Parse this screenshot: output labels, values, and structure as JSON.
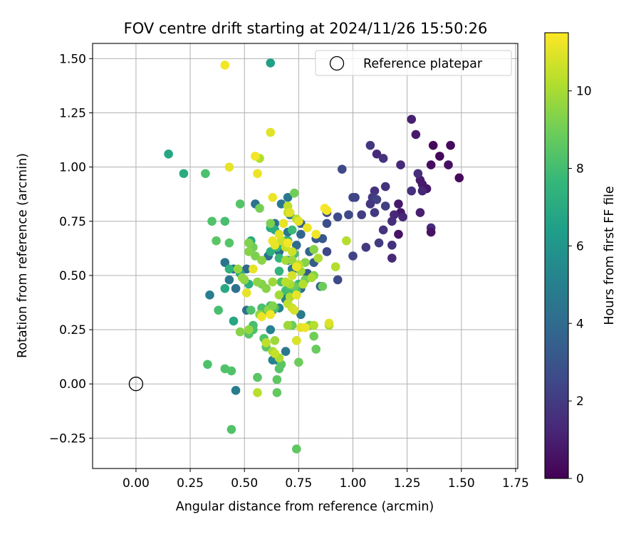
{
  "chart_data": {
    "type": "scatter",
    "title": "FOV centre drift starting at 2024/11/26 15:50:26",
    "xlabel": "Angular distance from reference (arcmin)",
    "ylabel": "Rotation from reference (arcmin)",
    "xlim": [
      -0.2,
      1.76
    ],
    "ylim": [
      -0.39,
      1.57
    ],
    "xticks": [
      0.0,
      0.25,
      0.5,
      0.75,
      1.0,
      1.25,
      1.5,
      1.75
    ],
    "xtick_labels": [
      "0.00",
      "0.25",
      "0.50",
      "0.75",
      "1.00",
      "1.25",
      "1.50",
      "1.75"
    ],
    "yticks": [
      -0.25,
      0.0,
      0.25,
      0.5,
      0.75,
      1.0,
      1.25,
      1.5
    ],
    "ytick_labels": [
      "−0.25",
      "0.00",
      "0.25",
      "0.50",
      "0.75",
      "1.00",
      "1.25",
      "1.50"
    ],
    "grid": true,
    "legend": {
      "placement": "top-right",
      "entries": [
        "Reference platepar"
      ]
    },
    "reference_point": {
      "x": 0.0,
      "y": 0.0
    },
    "colorbar": {
      "label": "Hours from first FF file",
      "colormap": "viridis",
      "range": [
        0,
        11.5
      ],
      "ticks": [
        0,
        2,
        4,
        6,
        8,
        10
      ],
      "tick_labels": [
        "0",
        "2",
        "4",
        "6",
        "8",
        "10"
      ]
    },
    "points": [
      [
        1.37,
        1.1,
        0.2
      ],
      [
        1.45,
        1.1,
        0.3
      ],
      [
        1.4,
        1.05,
        0.2
      ],
      [
        1.36,
        1.01,
        0.4
      ],
      [
        1.44,
        1.01,
        0.5
      ],
      [
        1.49,
        0.95,
        0.3
      ],
      [
        1.29,
        1.15,
        0.8
      ],
      [
        1.27,
        1.22,
        1.0
      ],
      [
        1.31,
        0.94,
        0.9
      ],
      [
        1.32,
        0.92,
        0.8
      ],
      [
        1.34,
        0.9,
        0.7
      ],
      [
        1.3,
        0.97,
        1.5
      ],
      [
        1.32,
        0.89,
        1.2
      ],
      [
        1.27,
        0.89,
        1.6
      ],
      [
        1.31,
        0.79,
        1.0
      ],
      [
        1.36,
        0.72,
        1.4
      ],
      [
        1.36,
        0.7,
        0.6
      ],
      [
        1.22,
        1.01,
        1.3
      ],
      [
        1.21,
        0.83,
        0.8
      ],
      [
        1.22,
        0.79,
        0.7
      ],
      [
        1.21,
        0.69,
        0.6
      ],
      [
        1.23,
        0.77,
        1.2
      ],
      [
        1.19,
        0.78,
        1.3
      ],
      [
        1.18,
        0.75,
        1.5
      ],
      [
        1.18,
        0.64,
        1.6
      ],
      [
        1.18,
        0.58,
        1.3
      ],
      [
        1.14,
        1.04,
        1.7
      ],
      [
        1.11,
        1.06,
        1.4
      ],
      [
        1.08,
        1.1,
        1.8
      ],
      [
        1.15,
        0.91,
        1.6
      ],
      [
        1.1,
        0.89,
        1.7
      ],
      [
        1.09,
        0.86,
        2.0
      ],
      [
        1.11,
        0.85,
        2.2
      ],
      [
        1.08,
        0.83,
        1.8
      ],
      [
        1.15,
        0.82,
        2.1
      ],
      [
        1.1,
        0.79,
        1.9
      ],
      [
        1.14,
        0.71,
        1.7
      ],
      [
        1.12,
        0.65,
        2.0
      ],
      [
        1.06,
        0.63,
        1.9
      ],
      [
        1.04,
        0.78,
        2.1
      ],
      [
        1.01,
        0.86,
        2.3
      ],
      [
        1.0,
        0.86,
        2.4
      ],
      [
        0.98,
        0.78,
        2.5
      ],
      [
        1.0,
        0.59,
        2.3
      ],
      [
        0.95,
        0.99,
        2.5
      ],
      [
        0.93,
        0.77,
        2.6
      ],
      [
        0.93,
        0.48,
        2.5
      ],
      [
        0.88,
        0.79,
        2.6
      ],
      [
        0.88,
        0.74,
        2.7
      ],
      [
        0.88,
        0.61,
        2.4
      ],
      [
        0.83,
        0.67,
        3.3
      ],
      [
        0.8,
        0.61,
        3.7
      ],
      [
        0.82,
        0.56,
        3.3
      ],
      [
        0.79,
        0.51,
        3.3
      ],
      [
        0.85,
        0.45,
        3.6
      ],
      [
        0.86,
        0.67,
        3.2
      ],
      [
        0.76,
        0.74,
        3.5
      ],
      [
        0.76,
        0.69,
        3.7
      ],
      [
        0.75,
        0.53,
        3.8
      ],
      [
        0.72,
        0.44,
        3.9
      ],
      [
        0.76,
        0.44,
        3.9
      ],
      [
        0.74,
        0.64,
        4.0
      ],
      [
        0.7,
        0.86,
        4.6
      ],
      [
        0.67,
        0.83,
        4.5
      ],
      [
        0.7,
        0.7,
        4.6
      ],
      [
        0.67,
        0.65,
        4.6
      ],
      [
        0.66,
        0.61,
        4.0
      ],
      [
        0.61,
        0.59,
        4.1
      ],
      [
        0.64,
        0.74,
        4.3
      ],
      [
        0.71,
        0.78,
        4.4
      ],
      [
        0.7,
        0.57,
        4.5
      ],
      [
        0.72,
        0.53,
        4.6
      ],
      [
        0.68,
        0.41,
        4.8
      ],
      [
        0.71,
        0.43,
        5.0
      ],
      [
        0.69,
        0.39,
        4.8
      ],
      [
        0.66,
        0.35,
        5.0
      ],
      [
        0.76,
        0.32,
        4.7
      ],
      [
        0.62,
        0.36,
        4.8
      ],
      [
        0.63,
        0.34,
        5.0
      ],
      [
        0.6,
        0.34,
        4.9
      ],
      [
        0.62,
        0.25,
        5.1
      ],
      [
        0.69,
        0.15,
        4.6
      ],
      [
        0.65,
        0.11,
        4.9
      ],
      [
        0.63,
        0.11,
        5.1
      ],
      [
        0.55,
        0.83,
        4.3
      ],
      [
        0.51,
        0.34,
        4.3
      ],
      [
        0.51,
        0.53,
        3.9
      ],
      [
        0.48,
        0.52,
        4.0
      ],
      [
        0.45,
        0.53,
        4.1
      ],
      [
        0.43,
        0.48,
        4.5
      ],
      [
        0.46,
        0.44,
        4.3
      ],
      [
        0.41,
        0.56,
        4.4
      ],
      [
        0.34,
        0.41,
        4.9
      ],
      [
        0.46,
        -0.03,
        4.8
      ],
      [
        0.62,
        1.48,
        6.5
      ],
      [
        0.15,
        1.06,
        6.8
      ],
      [
        0.22,
        0.97,
        7.0
      ],
      [
        0.41,
        0.44,
        6.9
      ],
      [
        0.48,
        0.51,
        7.0
      ],
      [
        0.52,
        0.46,
        7.2
      ],
      [
        0.43,
        0.53,
        7.4
      ],
      [
        0.45,
        0.29,
        6.8
      ],
      [
        0.53,
        0.66,
        7.0
      ],
      [
        0.62,
        0.72,
        7.0
      ],
      [
        0.62,
        0.61,
        7.2
      ],
      [
        0.64,
        0.71,
        7.1
      ],
      [
        0.65,
        0.63,
        7.5
      ],
      [
        0.66,
        0.58,
        7.6
      ],
      [
        0.69,
        0.66,
        7.6
      ],
      [
        0.66,
        0.52,
        7.5
      ],
      [
        0.7,
        0.66,
        7.4
      ],
      [
        0.72,
        0.71,
        7.8
      ],
      [
        0.73,
        0.6,
        8.0
      ],
      [
        0.75,
        0.46,
        7.6
      ],
      [
        0.74,
        0.43,
        8.0
      ],
      [
        0.69,
        0.43,
        7.9
      ],
      [
        0.71,
        0.44,
        8.1
      ],
      [
        0.67,
        0.47,
        8.2
      ],
      [
        0.62,
        0.36,
        8.0
      ],
      [
        0.64,
        0.35,
        8.1
      ],
      [
        0.58,
        0.35,
        8.2
      ],
      [
        0.53,
        0.34,
        8.3
      ],
      [
        0.54,
        0.27,
        8.1
      ],
      [
        0.52,
        0.23,
        8.4
      ],
      [
        0.54,
        0.25,
        8.2
      ],
      [
        0.59,
        0.21,
        8.3
      ],
      [
        0.6,
        0.17,
        8.5
      ],
      [
        0.66,
        0.07,
        8.4
      ],
      [
        0.67,
        0.09,
        8.5
      ],
      [
        0.65,
        0.02,
        8.6
      ],
      [
        0.56,
        0.03,
        8.5
      ],
      [
        0.65,
        -0.04,
        8.7
      ],
      [
        0.38,
        0.34,
        8.1
      ],
      [
        0.37,
        0.66,
        8.5
      ],
      [
        0.35,
        0.75,
        8.3
      ],
      [
        0.41,
        0.75,
        8.1
      ],
      [
        0.43,
        0.65,
        8.4
      ],
      [
        0.48,
        0.83,
        8.4
      ],
      [
        0.32,
        0.97,
        8.2
      ],
      [
        0.33,
        0.09,
        8.2
      ],
      [
        0.41,
        0.07,
        8.3
      ],
      [
        0.44,
        0.06,
        8.3
      ],
      [
        0.44,
        -0.21,
        8.3
      ],
      [
        0.74,
        -0.3,
        8.6
      ],
      [
        0.83,
        0.16,
        8.8
      ],
      [
        0.82,
        0.22,
        9.0
      ],
      [
        0.8,
        0.27,
        9.0
      ],
      [
        0.72,
        0.27,
        8.9
      ],
      [
        0.74,
        0.2,
        9.0
      ],
      [
        0.75,
        0.1,
        8.9
      ],
      [
        0.73,
        0.45,
        8.8
      ],
      [
        0.78,
        0.48,
        9.0
      ],
      [
        0.82,
        0.5,
        9.3
      ],
      [
        0.86,
        0.45,
        8.9
      ],
      [
        0.78,
        0.56,
        9.4
      ],
      [
        0.82,
        0.62,
        9.4
      ],
      [
        0.75,
        0.75,
        9.4
      ],
      [
        0.73,
        0.88,
        9.0
      ],
      [
        0.62,
        0.74,
        9.2
      ],
      [
        0.57,
        0.81,
        9.1
      ],
      [
        0.54,
        0.63,
        9.0
      ],
      [
        0.52,
        0.65,
        9.3
      ],
      [
        0.52,
        0.61,
        9.4
      ],
      [
        0.55,
        0.59,
        9.2
      ],
      [
        0.58,
        0.57,
        9.5
      ],
      [
        0.58,
        0.46,
        9.3
      ],
      [
        0.6,
        0.44,
        9.4
      ],
      [
        0.56,
        0.47,
        9.5
      ],
      [
        0.5,
        0.48,
        9.5
      ],
      [
        0.49,
        0.49,
        9.6
      ],
      [
        0.47,
        0.53,
        9.7
      ],
      [
        0.48,
        0.24,
        9.4
      ],
      [
        0.52,
        0.25,
        9.6
      ],
      [
        0.57,
        0.32,
        9.6
      ],
      [
        0.61,
        0.34,
        9.6
      ],
      [
        0.63,
        0.36,
        9.3
      ],
      [
        0.63,
        0.47,
        9.8
      ],
      [
        0.66,
        0.41,
        9.9
      ],
      [
        0.64,
        0.2,
        9.8
      ],
      [
        0.63,
        0.15,
        10.0
      ],
      [
        0.66,
        0.12,
        10.1
      ],
      [
        0.7,
        0.27,
        9.8
      ],
      [
        0.71,
        0.46,
        10.1
      ],
      [
        0.74,
        0.41,
        10.2
      ],
      [
        0.71,
        0.4,
        10.1
      ],
      [
        0.69,
        0.47,
        10.3
      ],
      [
        0.69,
        0.57,
        9.9
      ],
      [
        0.72,
        0.57,
        9.8
      ],
      [
        0.76,
        0.52,
        9.9
      ],
      [
        0.84,
        0.58,
        10.1
      ],
      [
        0.81,
        0.49,
        10.0
      ],
      [
        0.77,
        0.46,
        10.2
      ],
      [
        0.75,
        0.55,
        10.3
      ],
      [
        0.82,
        0.27,
        10.2
      ],
      [
        0.89,
        0.27,
        10.0
      ],
      [
        0.7,
        0.37,
        10.4
      ],
      [
        0.72,
        0.35,
        10.6
      ],
      [
        0.6,
        0.19,
        10.4
      ],
      [
        0.64,
        0.14,
        10.5
      ],
      [
        0.56,
        -0.04,
        10.3
      ],
      [
        0.57,
        1.04,
        10.2
      ],
      [
        0.7,
        0.82,
        10.4
      ],
      [
        0.7,
        0.79,
        10.5
      ],
      [
        0.74,
        0.76,
        10.3
      ],
      [
        0.67,
        0.66,
        10.6
      ],
      [
        0.69,
        0.63,
        10.5
      ],
      [
        0.72,
        0.61,
        10.7
      ],
      [
        0.92,
        0.54,
        10.2
      ],
      [
        0.97,
        0.66,
        10.2
      ],
      [
        0.72,
        0.5,
        10.8
      ],
      [
        0.89,
        0.28,
        10.9
      ],
      [
        0.73,
        0.34,
        10.8
      ],
      [
        0.74,
        0.2,
        10.9
      ],
      [
        0.71,
        0.79,
        11.0
      ],
      [
        0.68,
        0.74,
        11.1
      ],
      [
        0.66,
        0.69,
        11.0
      ],
      [
        0.63,
        0.66,
        11.2
      ],
      [
        0.64,
        0.64,
        11.1
      ],
      [
        0.7,
        0.65,
        11.3
      ],
      [
        0.63,
        0.86,
        11.2
      ],
      [
        0.75,
        0.75,
        11.0
      ],
      [
        0.74,
        0.54,
        11.2
      ],
      [
        0.76,
        0.26,
        11.0
      ],
      [
        0.78,
        0.26,
        11.2
      ],
      [
        0.79,
        0.72,
        11.2
      ],
      [
        0.83,
        0.69,
        11.3
      ],
      [
        0.54,
        0.53,
        11.1
      ],
      [
        0.58,
        0.31,
        11.2
      ],
      [
        0.51,
        0.42,
        11.1
      ],
      [
        0.43,
        1.0,
        11.1
      ],
      [
        0.55,
        1.05,
        11.3
      ],
      [
        0.56,
        0.97,
        11.2
      ],
      [
        0.62,
        1.16,
        11.0
      ],
      [
        0.41,
        1.47,
        11.3
      ],
      [
        0.87,
        0.81,
        11.4
      ],
      [
        0.88,
        0.8,
        11.3
      ],
      [
        0.74,
        0.41,
        11.1
      ],
      [
        0.62,
        0.32,
        11.3
      ]
    ]
  }
}
